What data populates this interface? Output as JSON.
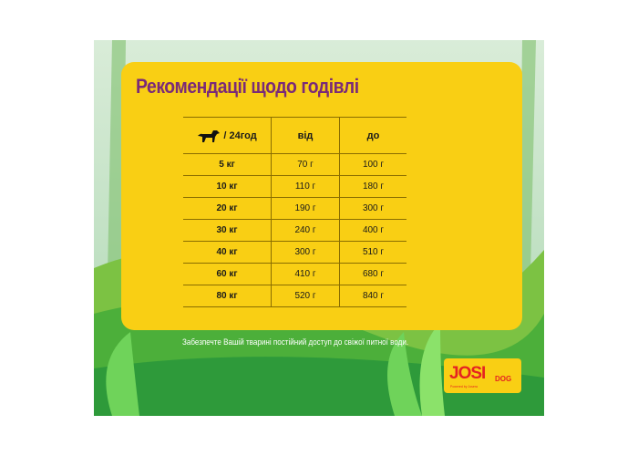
{
  "title": "Рекомендації щодо годівлі",
  "table": {
    "header": {
      "weight_label": "/ 24год",
      "from": "від",
      "to": "до",
      "icon": "dog-icon"
    },
    "rows": [
      {
        "weight": "5 кг",
        "from": "70 г",
        "to": "100 г"
      },
      {
        "weight": "10 кг",
        "from": "110 г",
        "to": "180 г"
      },
      {
        "weight": "20 кг",
        "from": "190 г",
        "to": "300 г"
      },
      {
        "weight": "30 кг",
        "from": "240 г",
        "to": "400 г"
      },
      {
        "weight": "40 кг",
        "from": "300 г",
        "to": "510 г"
      },
      {
        "weight": "60 кг",
        "from": "410 г",
        "to": "680 г"
      },
      {
        "weight": "80 кг",
        "from": "520 г",
        "to": "840 г"
      }
    ]
  },
  "note": "Забезпечте Вашій тварині постійний доступ до свіжої питної води.",
  "logo": {
    "main": "JOSI",
    "sub": "DOG",
    "powered": "Powered by Josera"
  },
  "colors": {
    "card": "#f9cf14",
    "title": "#7a2a78",
    "logo_red": "#e52421"
  }
}
